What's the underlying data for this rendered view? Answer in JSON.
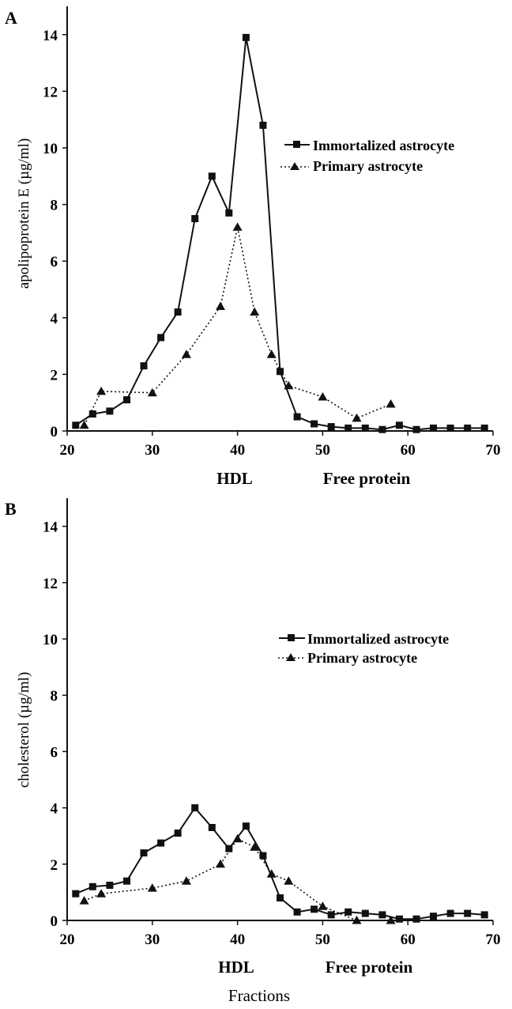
{
  "chart_data": [
    {
      "type": "line",
      "panel_label": "A",
      "ylabel": "apolipoprotein E (µg/ml)",
      "xlabel": "",
      "xlim": [
        20,
        70
      ],
      "ylim": [
        0,
        15
      ],
      "xticks": [
        20,
        30,
        40,
        50,
        60,
        70
      ],
      "yticks": [
        0,
        2,
        4,
        6,
        8,
        10,
        12,
        14
      ],
      "region_labels": [
        {
          "text": "HDL",
          "x": 40
        },
        {
          "text": "Free protein",
          "x": 56
        }
      ],
      "legend_position": "right",
      "series": [
        {
          "name": "Immortalized astrocyte",
          "marker": "square",
          "line": "solid",
          "points": [
            [
              21,
              0.2
            ],
            [
              23,
              0.6
            ],
            [
              25,
              0.7
            ],
            [
              27,
              1.1
            ],
            [
              29,
              2.3
            ],
            [
              31,
              3.3
            ],
            [
              33,
              4.2
            ],
            [
              35,
              7.5
            ],
            [
              37,
              9.0
            ],
            [
              39,
              7.7
            ],
            [
              41,
              13.9
            ],
            [
              43,
              10.8
            ],
            [
              45,
              2.1
            ],
            [
              47,
              0.5
            ],
            [
              49,
              0.25
            ],
            [
              51,
              0.15
            ],
            [
              53,
              0.1
            ],
            [
              55,
              0.1
            ],
            [
              57,
              0.05
            ],
            [
              59,
              0.2
            ],
            [
              61,
              0.05
            ],
            [
              63,
              0.1
            ],
            [
              65,
              0.1
            ],
            [
              67,
              0.1
            ],
            [
              69,
              0.1
            ]
          ]
        },
        {
          "name": "Primary astrocyte",
          "marker": "triangle",
          "line": "dotted",
          "points": [
            [
              22,
              0.2
            ],
            [
              24,
              1.4
            ],
            [
              30,
              1.35
            ],
            [
              34,
              2.7
            ],
            [
              38,
              4.4
            ],
            [
              40,
              7.2
            ],
            [
              42,
              4.2
            ],
            [
              44,
              2.7
            ],
            [
              46,
              1.6
            ],
            [
              50,
              1.2
            ],
            [
              54,
              0.45
            ],
            [
              58,
              0.95
            ]
          ]
        }
      ]
    },
    {
      "type": "line",
      "panel_label": "B",
      "ylabel": "cholesterol (µg/ml)",
      "xlabel": "Fractions",
      "xlim": [
        20,
        70
      ],
      "ylim": [
        0,
        15
      ],
      "xticks": [
        20,
        30,
        40,
        50,
        60,
        70
      ],
      "yticks": [
        0,
        2,
        4,
        6,
        8,
        10,
        12,
        14
      ],
      "region_labels": [
        {
          "text": "HDL",
          "x": 40
        },
        {
          "text": "Free protein",
          "x": 56
        }
      ],
      "legend_position": "right",
      "series": [
        {
          "name": "Immortalized astrocyte",
          "marker": "square",
          "line": "solid",
          "points": [
            [
              21,
              0.95
            ],
            [
              23,
              1.2
            ],
            [
              25,
              1.25
            ],
            [
              27,
              1.4
            ],
            [
              29,
              2.4
            ],
            [
              31,
              2.75
            ],
            [
              33,
              3.1
            ],
            [
              35,
              4.0
            ],
            [
              37,
              3.3
            ],
            [
              39,
              2.55
            ],
            [
              41,
              3.35
            ],
            [
              43,
              2.3
            ],
            [
              45,
              0.8
            ],
            [
              47,
              0.3
            ],
            [
              49,
              0.4
            ],
            [
              51,
              0.2
            ],
            [
              53,
              0.3
            ],
            [
              55,
              0.25
            ],
            [
              57,
              0.2
            ],
            [
              59,
              0.05
            ],
            [
              61,
              0.05
            ],
            [
              63,
              0.15
            ],
            [
              65,
              0.25
            ],
            [
              67,
              0.25
            ],
            [
              69,
              0.2
            ]
          ]
        },
        {
          "name": "Primary astrocyte",
          "marker": "triangle",
          "line": "dotted",
          "points": [
            [
              22,
              0.7
            ],
            [
              24,
              0.95
            ],
            [
              30,
              1.15
            ],
            [
              34,
              1.4
            ],
            [
              38,
              2.0
            ],
            [
              40,
              2.9
            ],
            [
              42,
              2.6
            ],
            [
              44,
              1.65
            ],
            [
              46,
              1.4
            ],
            [
              50,
              0.5
            ],
            [
              54,
              0.0
            ],
            [
              58,
              0.0
            ]
          ]
        }
      ]
    }
  ]
}
